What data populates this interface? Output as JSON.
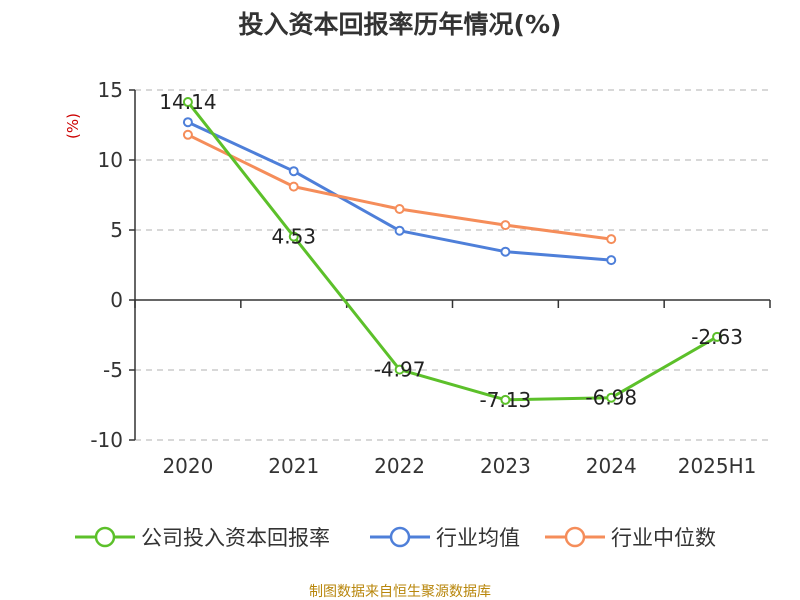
{
  "chart_data": {
    "type": "line",
    "title": "投入资本回报率历年情况(%)",
    "ylabel": "(%)",
    "xlabel": "",
    "categories": [
      "2020",
      "2021",
      "2022",
      "2023",
      "2024",
      "2025H1"
    ],
    "ylim": [
      -10,
      15
    ],
    "yticks": [
      15,
      10,
      5,
      0,
      -5,
      -10
    ],
    "grid": true,
    "legend_position": "bottom",
    "series": [
      {
        "name": "公司投入资本回报率",
        "color": "#5cc02a",
        "values": [
          14.14,
          4.53,
          -4.97,
          -7.13,
          -6.98,
          -2.63
        ],
        "labels": [
          "14.14",
          "4.53",
          "-4.97",
          "-7.13",
          "-6.98",
          "-2.63"
        ]
      },
      {
        "name": "行业均值",
        "color": "#4e7fd9",
        "values": [
          12.7,
          9.2,
          4.95,
          3.45,
          2.85,
          null
        ]
      },
      {
        "name": "行业中位数",
        "color": "#f58d5a",
        "values": [
          11.8,
          8.1,
          6.5,
          5.35,
          4.35,
          null
        ]
      }
    ]
  },
  "source_text": "制图数据来自恒生聚源数据库"
}
